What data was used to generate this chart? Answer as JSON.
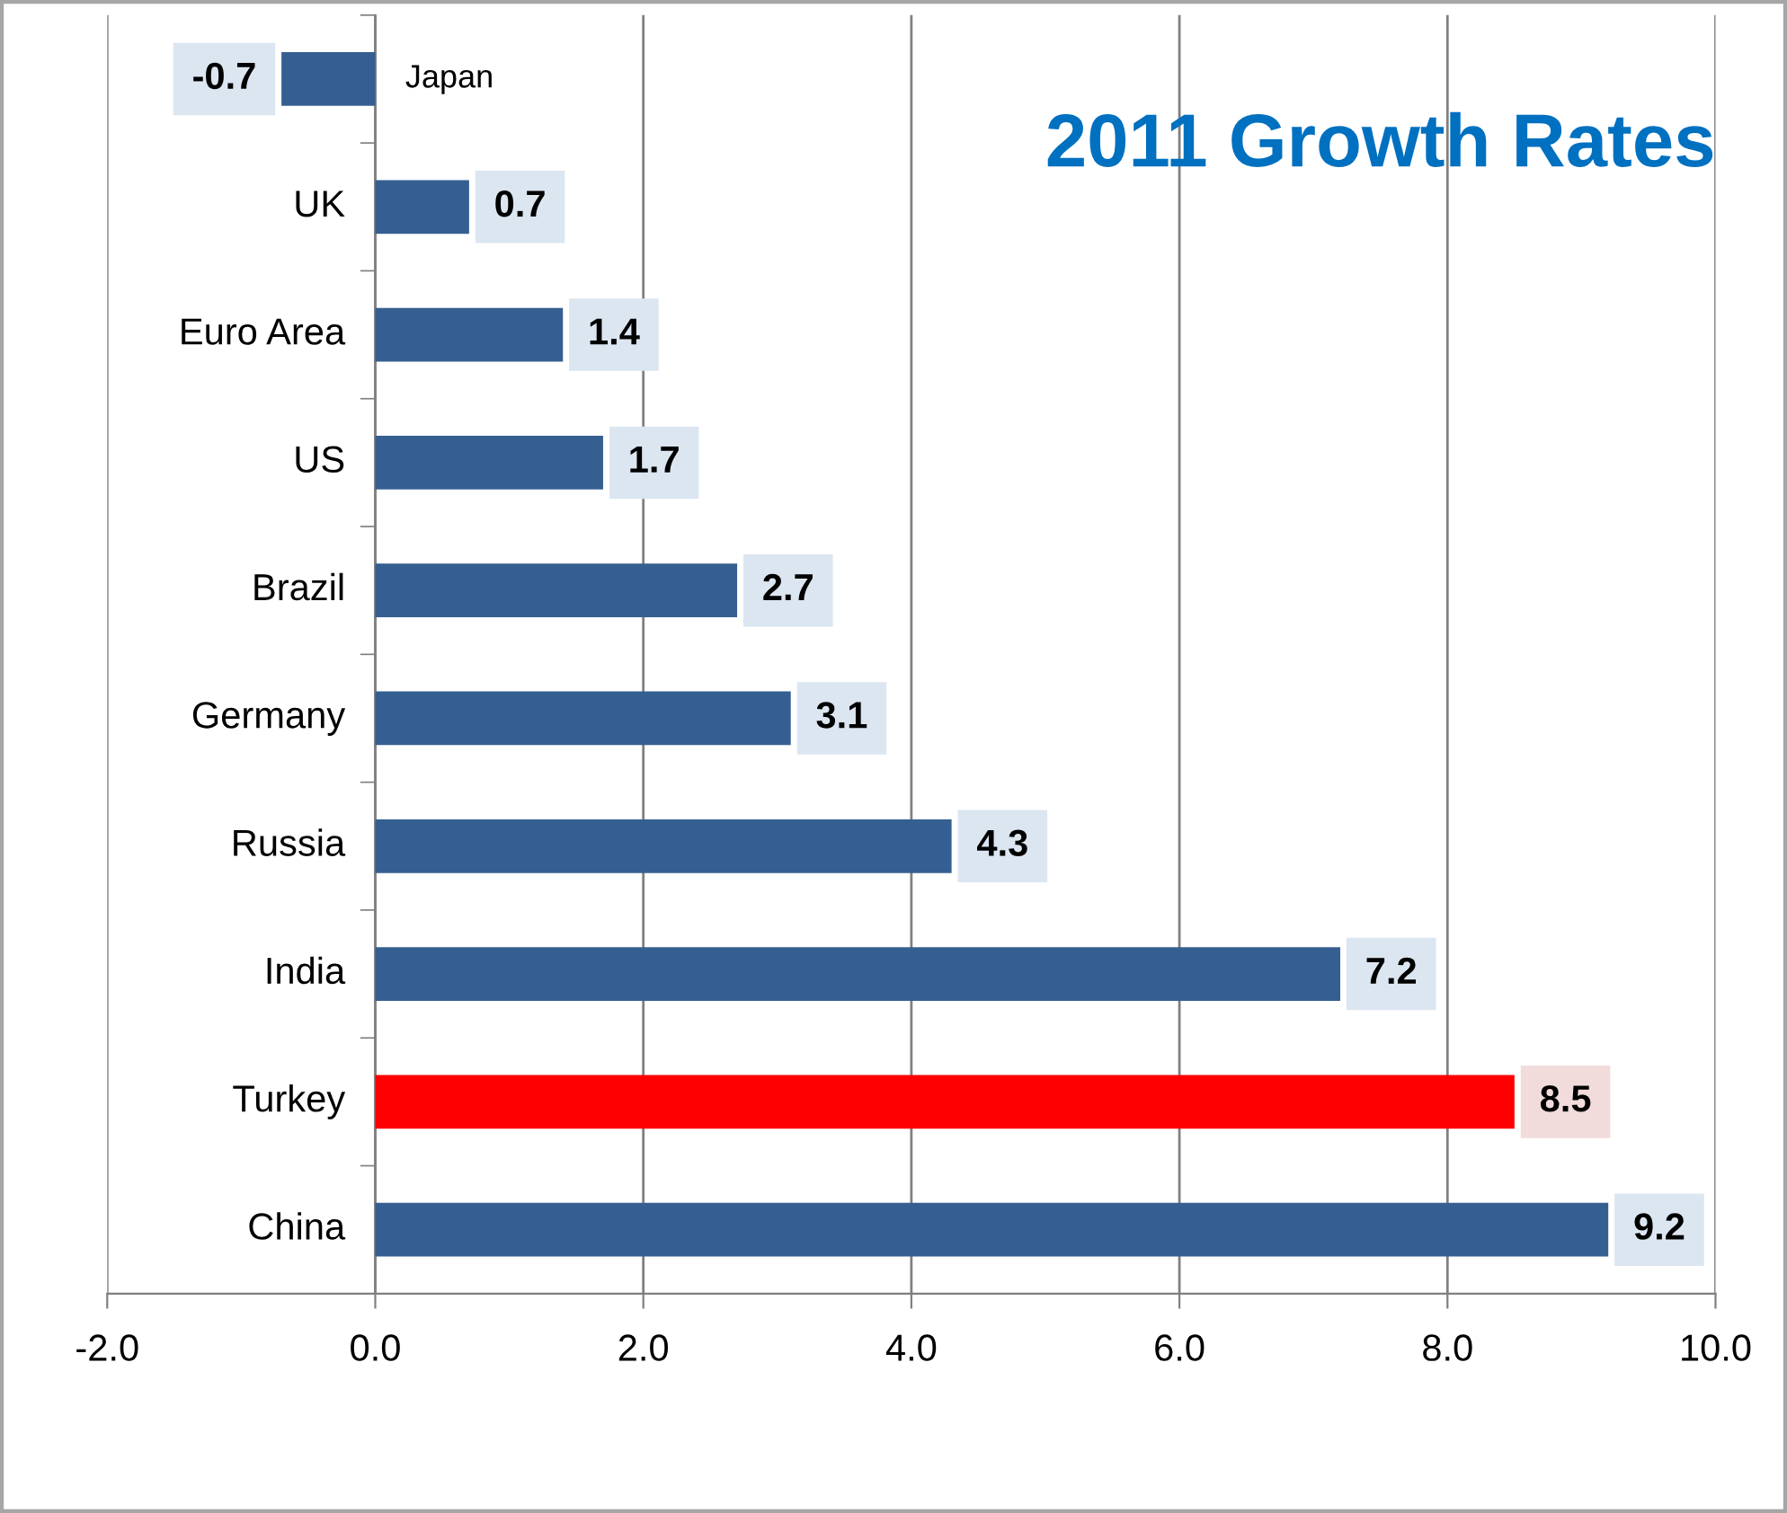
{
  "chart_data": {
    "type": "bar",
    "orientation": "horizontal",
    "title": "2011 Growth Rates",
    "categories": [
      "Japan",
      "UK",
      "Euro Area",
      "US",
      "Brazil",
      "Germany",
      "Russia",
      "India",
      "Turkey",
      "China"
    ],
    "values": [
      -0.7,
      0.7,
      1.4,
      1.7,
      2.7,
      3.1,
      4.3,
      7.2,
      8.5,
      9.2
    ],
    "colors": [
      "#355f91",
      "#355f91",
      "#355f91",
      "#355f91",
      "#355f91",
      "#355f91",
      "#355f91",
      "#355f91",
      "#ff0000",
      "#355f91"
    ],
    "xlim": [
      -2,
      10
    ],
    "xticks": [
      {
        "value": -2,
        "label": "-2.0"
      },
      {
        "value": 0,
        "label": "0.0"
      },
      {
        "value": 2,
        "label": "2.0"
      },
      {
        "value": 4,
        "label": "4.0"
      },
      {
        "value": 6,
        "label": "6.0"
      },
      {
        "value": 8,
        "label": "8.0"
      },
      {
        "value": 10,
        "label": "10.0"
      }
    ],
    "grid": "x",
    "data_labels": true,
    "legend": false
  }
}
